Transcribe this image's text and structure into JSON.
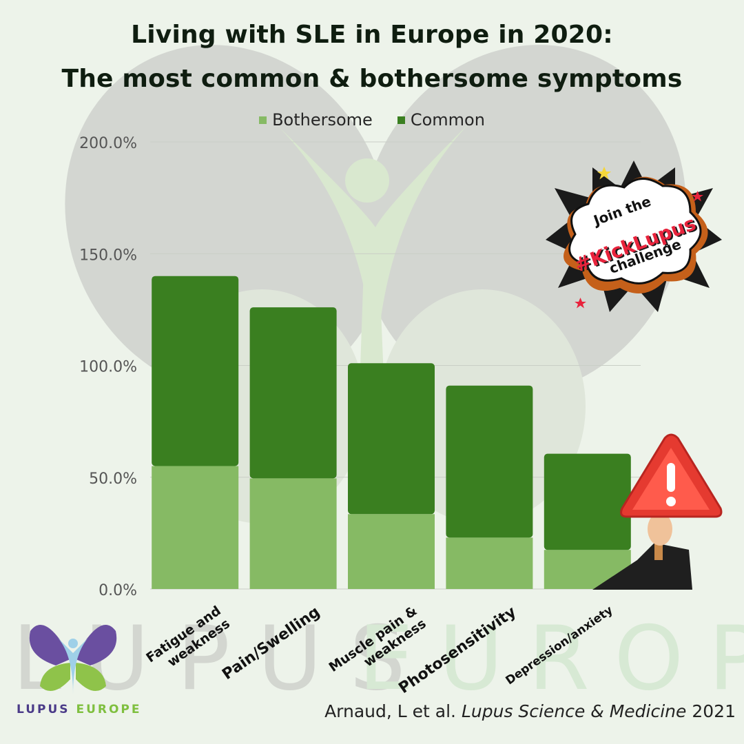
{
  "title_lines": [
    "Living with SLE in Europe in 2020:",
    "The most common & bothersome symptoms"
  ],
  "colors": {
    "common": "#3a7f20",
    "bothersome": "#86ba64",
    "background": "#edf3ea",
    "grid": "#c9cec6"
  },
  "legend": {
    "bothersome": "Bothersome",
    "common": "Common"
  },
  "chart_data": {
    "type": "bar",
    "stacked": true,
    "categories": [
      "Fatigue and weakness",
      "Pain/Swelling",
      "Muscle pain & weakness",
      "Photosensitivity",
      "Depression/anxiety"
    ],
    "category_label_lines": [
      [
        "Fatigue and",
        "weakness"
      ],
      [
        "Pain/Swelling"
      ],
      [
        "Muscle pain &",
        "weakness"
      ],
      [
        "Photosensitivity"
      ],
      [
        "Depression/anxiety"
      ]
    ],
    "series": [
      {
        "name": "Bothersome",
        "values": [
          55.0,
          49.5,
          33.5,
          23.0,
          17.5
        ]
      },
      {
        "name": "Common",
        "values": [
          85.0,
          76.5,
          67.5,
          68.0,
          43.0
        ]
      }
    ],
    "ylim": [
      0,
      200
    ],
    "yticks": [
      0,
      50,
      100,
      150,
      200
    ],
    "ytick_labels": [
      "0.0%",
      "50.0%",
      "100.0%",
      "150.0%",
      "200.0%"
    ],
    "grid": true,
    "legend_position": "top-center"
  },
  "badge": {
    "line1": "Join the",
    "line2": "#KickLupus",
    "line3": "challenge"
  },
  "brand": {
    "watermark_word1": "LUPUS",
    "watermark_word2": "EUROPE",
    "name_part1": "LUPUS",
    "name_part2": "EUROPE"
  },
  "citation": {
    "authors": "Arnaud, L et al.",
    "journal": "Lupus Science & Medicine",
    "year": "2021"
  },
  "icons": {
    "warning": "warning-sign-icon",
    "logo": "butterfly-logo-icon"
  }
}
